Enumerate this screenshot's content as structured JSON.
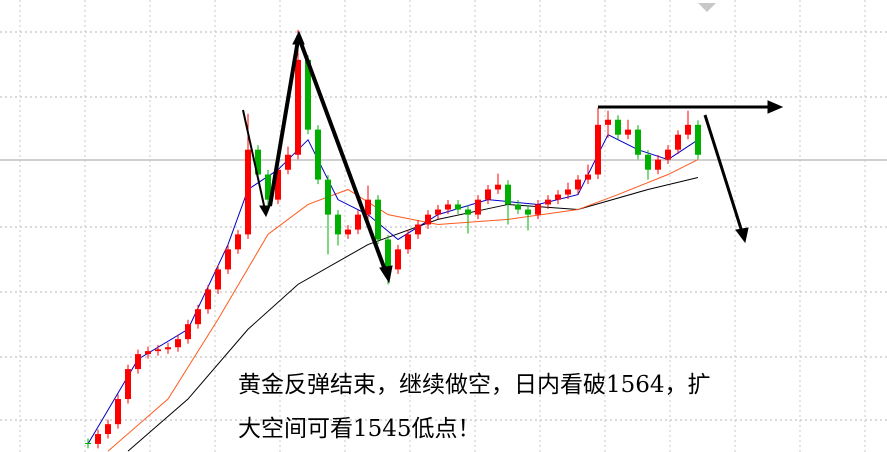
{
  "chart_data": {
    "type": "candlestick",
    "ylim": [
      1499,
      1650
    ],
    "up_color": "#ff0000",
    "down_color": "#00b000",
    "open": [
      1502,
      1501.7,
      1505,
      1508.3,
      1516.7,
      1526.7,
      1531.7,
      1532.7,
      1533.3,
      1534,
      1536.7,
      1541.7,
      1546.7,
      1553.3,
      1560,
      1566.7,
      1571.7,
      1600,
      1591.7,
      1583.3,
      1593.3,
      1598.3,
      1630,
      1606.7,
      1590,
      1578.3,
      1571.7,
      1573.3,
      1578.3,
      1583.3,
      1570,
      1560,
      1566.7,
      1571.7,
      1575,
      1578.3,
      1580,
      1581.7,
      1580,
      1578.3,
      1583.3,
      1586.7,
      1588.3,
      1581.7,
      1580,
      1578.3,
      1581.7,
      1583.3,
      1585,
      1586.7,
      1590,
      1591.7,
      1608.3,
      1610,
      1605,
      1606.7,
      1598.3,
      1593.3,
      1596.7,
      1600,
      1605,
      1608.3
    ],
    "high": [
      1503.5,
      1506.5,
      1509.8,
      1518.2,
      1528.2,
      1533.2,
      1534.2,
      1534.8,
      1535.5,
      1538.2,
      1543.2,
      1548.2,
      1554.8,
      1561.5,
      1568.2,
      1573.2,
      1612,
      1601.5,
      1593.2,
      1594.8,
      1601,
      1640,
      1631.5,
      1608.2,
      1591.5,
      1579.8,
      1574.8,
      1579.8,
      1588,
      1584.8,
      1571.5,
      1568.2,
      1573.2,
      1576.5,
      1579.8,
      1581.5,
      1583.2,
      1583.2,
      1581.5,
      1584.8,
      1588.2,
      1592,
      1589.8,
      1583.2,
      1581.5,
      1583.2,
      1584.8,
      1586.5,
      1589,
      1591.5,
      1595,
      1614,
      1613,
      1611.5,
      1610,
      1608.2,
      1599.8,
      1598.2,
      1601.5,
      1606.5,
      1613,
      1609.8
    ],
    "low": [
      1500.2,
      1500.2,
      1503.5,
      1506.8,
      1515.2,
      1525.2,
      1530.2,
      1531.2,
      1531.8,
      1532.5,
      1535.2,
      1540.2,
      1545.2,
      1551.8,
      1558.5,
      1565.2,
      1570.2,
      1590.2,
      1580,
      1581.8,
      1591.8,
      1596.8,
      1605.2,
      1588.5,
      1565,
      1568,
      1570.2,
      1571.8,
      1576.8,
      1568.5,
      1555,
      1558.5,
      1565.2,
      1570.2,
      1573.5,
      1576.8,
      1578.5,
      1578.5,
      1572,
      1576.8,
      1581.8,
      1585.2,
      1575,
      1578.5,
      1573,
      1576.8,
      1580.2,
      1581.8,
      1583.5,
      1585.2,
      1588.5,
      1590.2,
      1604,
      1603.5,
      1603.5,
      1596.8,
      1590,
      1591.8,
      1595.2,
      1598.5,
      1603.5,
      1596.8
    ],
    "close": [
      1501.7,
      1505,
      1508.3,
      1516.7,
      1526.7,
      1531.7,
      1532.7,
      1533.3,
      1534,
      1536.7,
      1541.7,
      1546.7,
      1553.3,
      1560,
      1566.7,
      1571.7,
      1600,
      1591.7,
      1583.3,
      1593.3,
      1598.3,
      1630,
      1606.7,
      1590,
      1578.3,
      1571.7,
      1573.3,
      1578.3,
      1583.3,
      1570,
      1560,
      1566.7,
      1571.7,
      1575,
      1578.3,
      1580,
      1581.7,
      1580,
      1578.3,
      1583.3,
      1586.7,
      1588.3,
      1581.7,
      1580,
      1578.3,
      1581.7,
      1583.3,
      1585,
      1586.7,
      1590,
      1591.7,
      1608.3,
      1610,
      1605,
      1606.7,
      1598.3,
      1593.3,
      1596.7,
      1600,
      1605,
      1608.3,
      1598.3
    ],
    "lines": [
      {
        "color": "#000000",
        "x": [
          4,
          10,
          16,
          21,
          28,
          35,
          42,
          49,
          56,
          61
        ],
        "values": [
          1499.3,
          1516.7,
          1540,
          1555,
          1568.3,
          1576.7,
          1581.7,
          1580,
          1586.7,
          1590.7
        ]
      },
      {
        "color": "#ff5a1e",
        "x": [
          2,
          8,
          13,
          18,
          22,
          26,
          30,
          35,
          42,
          49,
          53,
          58,
          61
        ],
        "values": [
          1499.3,
          1516.7,
          1543.3,
          1571.7,
          1581.7,
          1586.7,
          1578.3,
          1575,
          1576.7,
          1580,
          1585,
          1591.7,
          1596.7
        ]
      },
      {
        "color": "#0000c8",
        "x": [
          0,
          5,
          10,
          14,
          16,
          19,
          22,
          25,
          28,
          31,
          35,
          40,
          45,
          49,
          52,
          55,
          58,
          61
        ],
        "values": [
          1501.7,
          1530,
          1540,
          1568.3,
          1586.7,
          1593.3,
          1603.3,
          1583.3,
          1578.3,
          1570,
          1578.3,
          1583.3,
          1581.7,
          1585,
          1605,
          1600,
          1596.7,
          1603.3
        ]
      }
    ],
    "annotation": [
      "黄金反弹结束，继续做空，日内看破1564，扩",
      "大空间可看1545低点！"
    ]
  }
}
